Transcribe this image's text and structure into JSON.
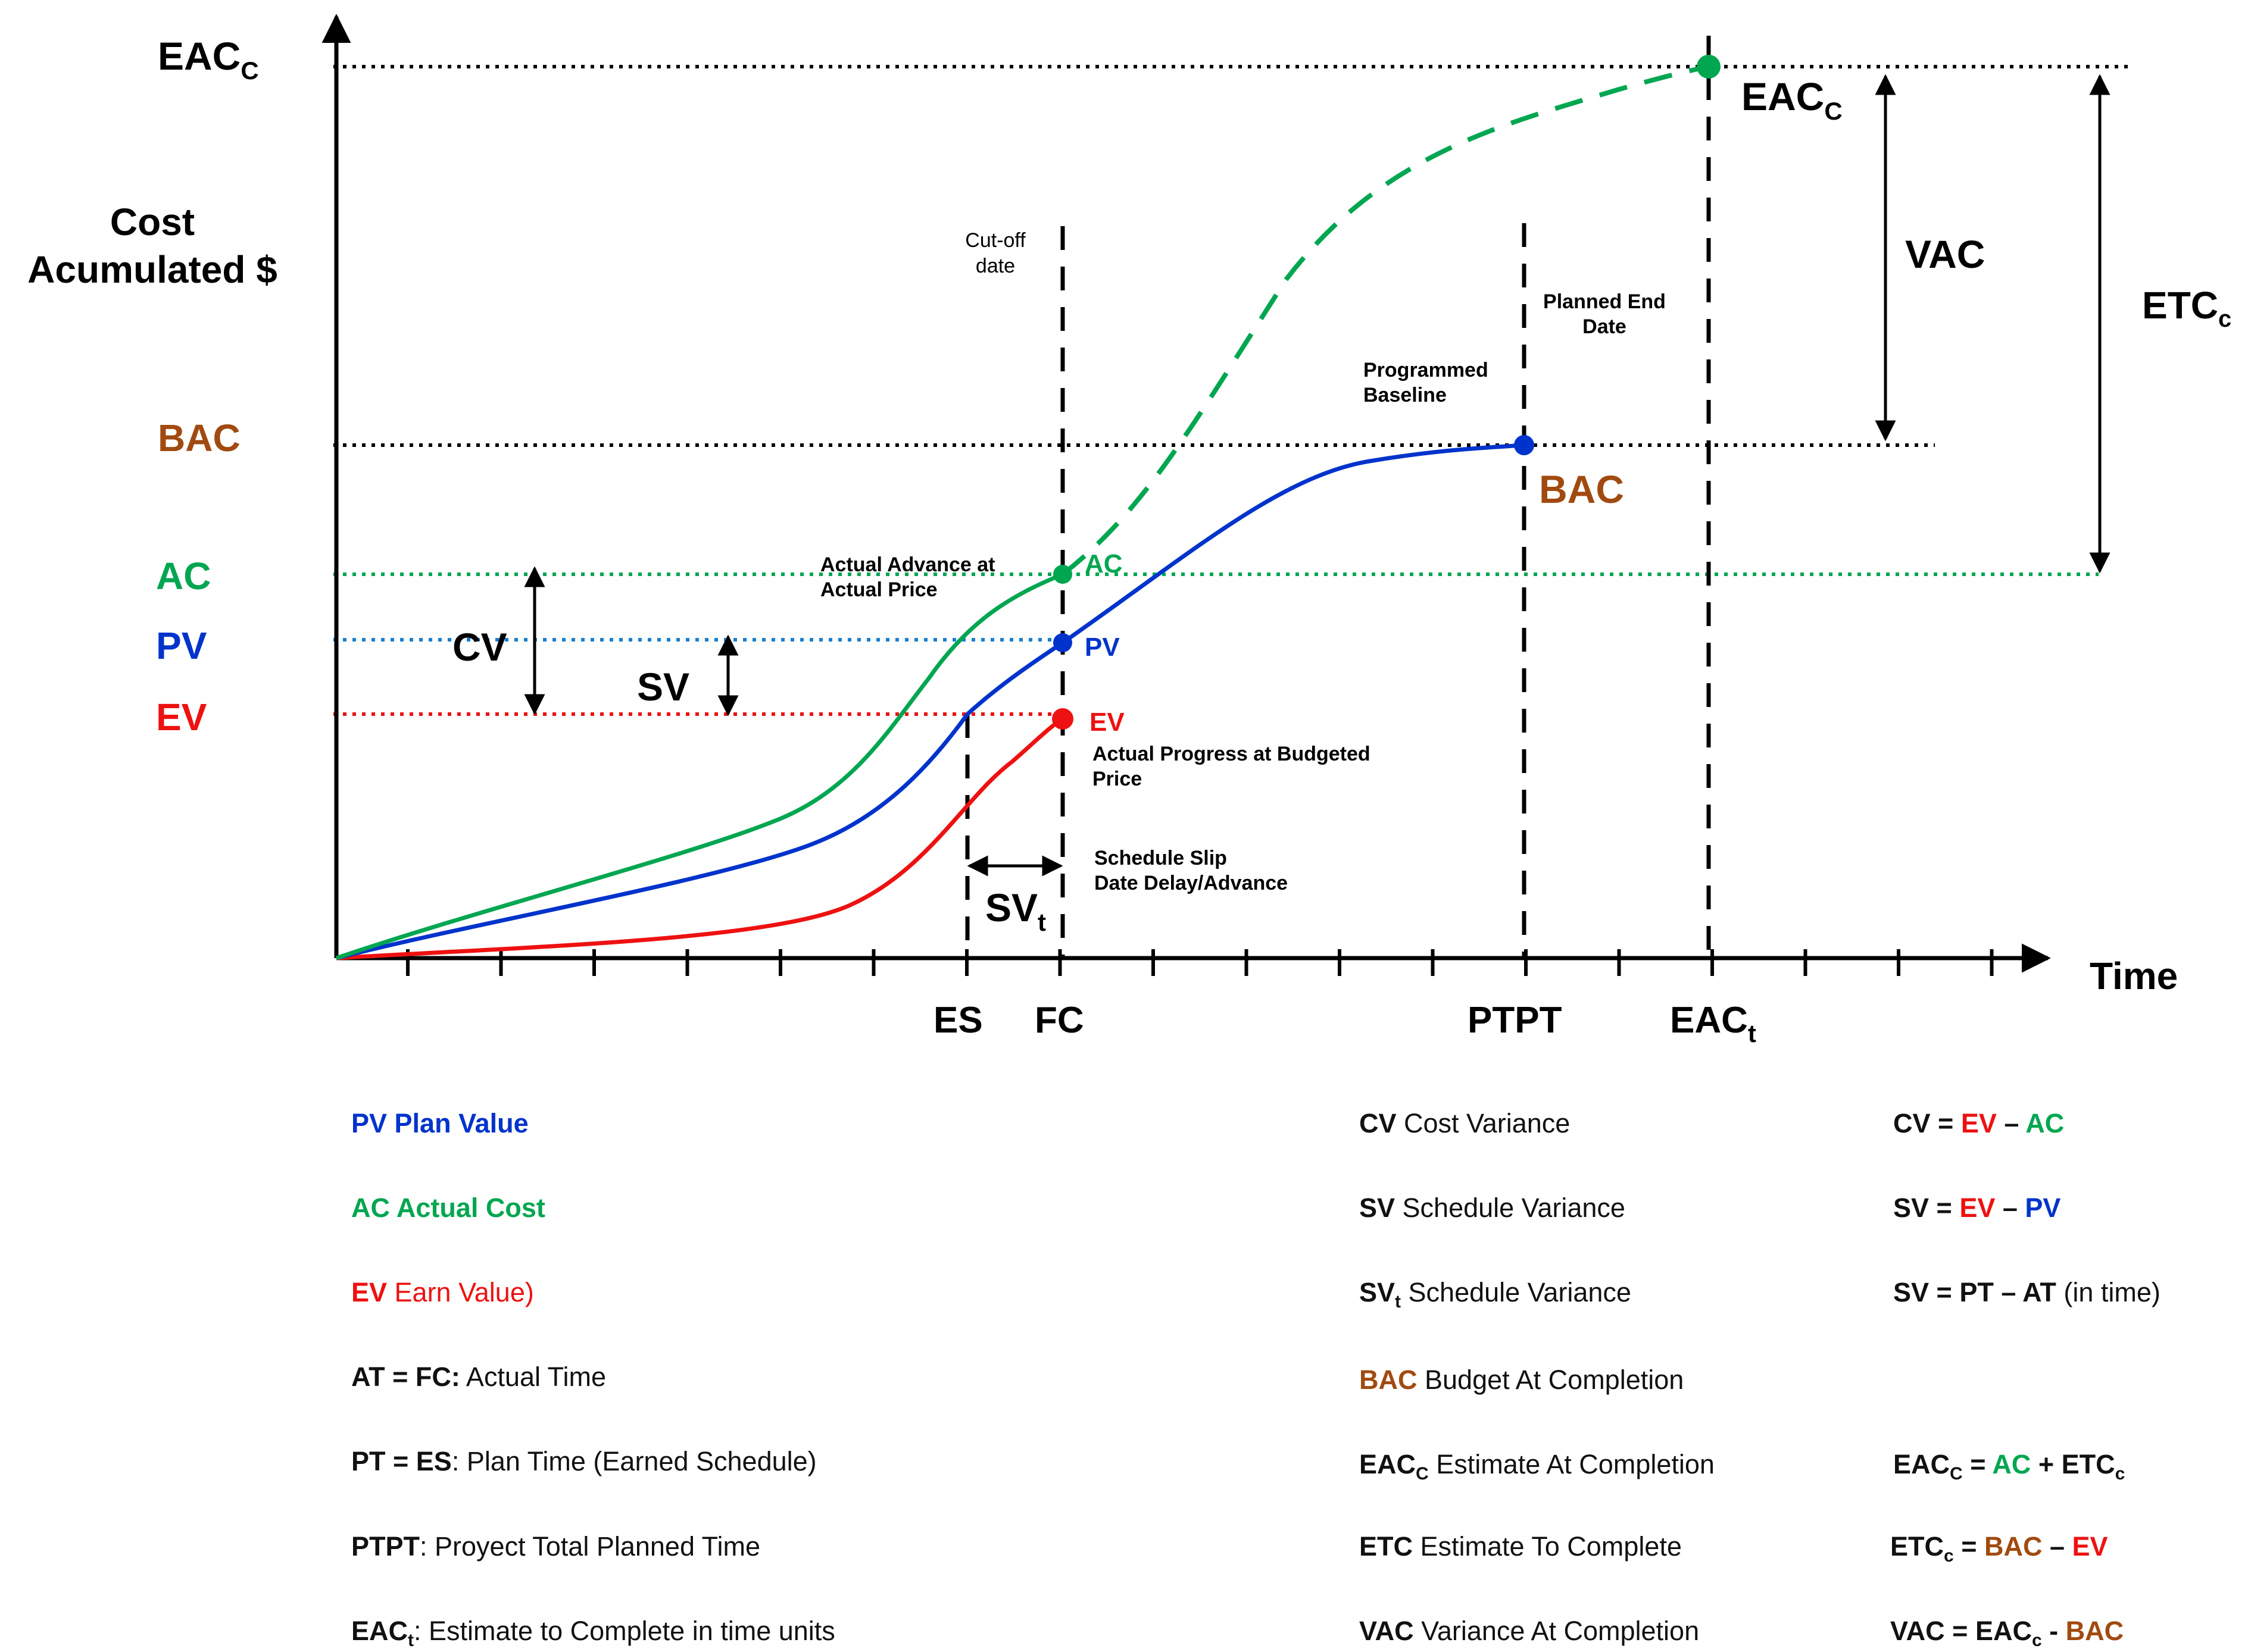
{
  "colors": {
    "pv": "#0033cc",
    "ac": "#00a650",
    "ev": "#ee1111",
    "bac": "#a14a10",
    "axis": "#000000"
  },
  "y_axis": {
    "label_line1": "Cost",
    "label_line2": "Acumulated $",
    "levels": {
      "eac_base": "EAC",
      "eac_sub": "C",
      "bac": "BAC",
      "ac": "AC",
      "pv": "PV",
      "ev": "EV"
    }
  },
  "x_axis": {
    "label": "Time",
    "marks": {
      "es": "ES",
      "fc": "FC",
      "ptpt": "PTPT",
      "eact_base": "EAC",
      "eact_sub": "t"
    }
  },
  "annotations": {
    "cutoff_line1": "Cut-off",
    "cutoff_line2": "date",
    "planned_end_line1": "Planned End",
    "planned_end_line2": "Date",
    "programmed_line1": "Programmed",
    "programmed_line2": "Baseline",
    "actual_adv_line1": "Actual Advance at",
    "actual_adv_line2": "Actual Price",
    "actual_prog_line1": "Actual Progress at Budgeted",
    "actual_prog_line2": "Price",
    "slip_line1": "Schedule Slip",
    "slip_line2": "Date Delay/Advance",
    "pt_ac": "AC",
    "pt_pv": "PV",
    "pt_ev": "EV",
    "pt_bac": "BAC",
    "eac_right_base": "EAC",
    "eac_right_sub": "C",
    "vac": "VAC",
    "etc_base": "ETC",
    "etc_sub": "c",
    "cv": "CV",
    "sv": "SV",
    "svt_base": "SV",
    "svt_sub": "t"
  },
  "legend": {
    "left": [
      {
        "code": "PV",
        "text": " Plan Value"
      },
      {
        "code": "AC",
        "text": " Actual Cost"
      },
      {
        "code": "EV",
        "text": " Earn Value)"
      },
      {
        "code": "AT = FC:",
        "text": " Actual Time"
      },
      {
        "code": "PT = ES",
        "text": ": Plan Time (Earned Schedule)"
      },
      {
        "code": "PTPT",
        "text": ": Proyect Total Planned Time"
      },
      {
        "code": "EAC",
        "sub": "t",
        "text": ": Estimate to Complete in time units"
      }
    ],
    "middle": [
      {
        "code": "CV",
        "text": " Cost Variance"
      },
      {
        "code": "SV",
        "text": " Schedule Variance"
      },
      {
        "code": "SV",
        "sub": "t",
        "text": " Schedule Variance"
      },
      {
        "code": "BAC",
        "text": " Budget At Completion"
      },
      {
        "code": "EAC",
        "sub": "C",
        "text": " Estimate At Completion"
      },
      {
        "code": "ETC",
        "text": " Estimate To Complete"
      },
      {
        "code": "VAC",
        "text": " Variance At Completion"
      }
    ],
    "formulas": {
      "cv": {
        "lhs": "CV =",
        "t1": "EV",
        "op": " – ",
        "t2": "AC"
      },
      "sv": {
        "lhs": "SV =",
        "t1": "EV",
        "op": " – ",
        "t2": "PV"
      },
      "svt": {
        "lhs": "SV = PT – AT",
        "rest": " (in time)"
      },
      "eac": {
        "lhs_base": "EAC",
        "lhs_sub": "C",
        "eq": " = ",
        "t1": "AC",
        "op": " + ",
        "t2_base": "ETC",
        "t2_sub": "c"
      },
      "etc": {
        "lhs_base": "ETC",
        "lhs_sub": "c",
        "eq": " = ",
        "t1": "BAC",
        "op": " – ",
        "t2": "EV"
      },
      "vac": {
        "lhs_base": "VAC = EAC",
        "lhs_sub": "c",
        "op": " - ",
        "t2": "BAC"
      }
    }
  }
}
